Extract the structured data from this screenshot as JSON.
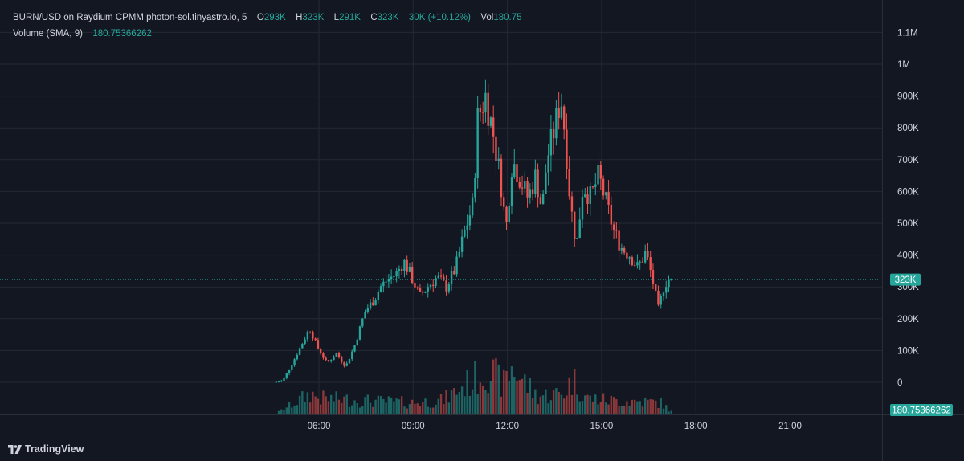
{
  "header": {
    "symbol": "BURN/USD on Raydium CPMM photon-sol.tinyastro.io",
    "interval": "5",
    "open_label": "O",
    "open_value": "293K",
    "high_label": "H",
    "high_value": "323K",
    "low_label": "L",
    "low_value": "291K",
    "close_label": "C",
    "close_value": "323K",
    "change": "30K (+10.12%)",
    "vol_label": "Vol",
    "vol_value": "180.75"
  },
  "indicator": {
    "label": "Volume (SMA, 9)",
    "value": "180.75366262"
  },
  "brand": {
    "name": "TradingView"
  },
  "colors": {
    "up": "#26a69a",
    "down": "#ef5350",
    "background": "#131722",
    "grid": "#242832"
  },
  "chart_data": {
    "type": "candlestick",
    "y_axis": {
      "ticks": [
        "1.1M",
        "1M",
        "900K",
        "800K",
        "700K",
        "600K",
        "500K",
        "400K",
        "300K",
        "200K",
        "100K",
        "0"
      ],
      "tick_values": [
        1100000,
        1000000,
        900000,
        800000,
        700000,
        600000,
        500000,
        400000,
        300000,
        200000,
        100000,
        0
      ],
      "ylim": [
        0,
        1100000
      ]
    },
    "x_axis": {
      "ticks": [
        "06:00",
        "09:00",
        "12:00",
        "15:00",
        "18:00",
        "21:00"
      ],
      "tick_hours": [
        6,
        9,
        12,
        15,
        18,
        21
      ]
    },
    "last_price": {
      "label": "323K",
      "value": 323000
    },
    "volume_last_label": "180.75366262",
    "price_path": [
      [
        4.6,
        0
      ],
      [
        4.9,
        5000
      ],
      [
        5.2,
        60000
      ],
      [
        5.5,
        120000
      ],
      [
        5.75,
        170000
      ],
      [
        6.0,
        110000
      ],
      [
        6.3,
        60000
      ],
      [
        6.6,
        90000
      ],
      [
        6.9,
        50000
      ],
      [
        7.2,
        120000
      ],
      [
        7.5,
        220000
      ],
      [
        7.8,
        260000
      ],
      [
        8.0,
        300000
      ],
      [
        8.2,
        320000
      ],
      [
        8.5,
        340000
      ],
      [
        8.75,
        380000
      ],
      [
        9.0,
        330000
      ],
      [
        9.25,
        270000
      ],
      [
        9.5,
        300000
      ],
      [
        9.8,
        330000
      ],
      [
        10.1,
        300000
      ],
      [
        10.4,
        360000
      ],
      [
        10.7,
        480000
      ],
      [
        10.95,
        560000
      ],
      [
        11.1,
        830000
      ],
      [
        11.35,
        900000
      ],
      [
        11.6,
        780000
      ],
      [
        11.85,
        620000
      ],
      [
        12.0,
        480000
      ],
      [
        12.2,
        700000
      ],
      [
        12.45,
        640000
      ],
      [
        12.7,
        580000
      ],
      [
        12.95,
        650000
      ],
      [
        13.15,
        540000
      ],
      [
        13.3,
        700000
      ],
      [
        13.55,
        800000
      ],
      [
        13.75,
        900000
      ],
      [
        13.9,
        760000
      ],
      [
        14.05,
        560000
      ],
      [
        14.25,
        430000
      ],
      [
        14.45,
        620000
      ],
      [
        14.7,
        580000
      ],
      [
        14.95,
        650000
      ],
      [
        15.2,
        560000
      ],
      [
        15.45,
        470000
      ],
      [
        15.7,
        420000
      ],
      [
        15.95,
        400000
      ],
      [
        16.2,
        360000
      ],
      [
        16.45,
        410000
      ],
      [
        16.65,
        330000
      ],
      [
        16.85,
        230000
      ],
      [
        17.05,
        310000
      ],
      [
        17.2,
        325000
      ]
    ],
    "volume_bursts": [
      [
        4.6,
        0.02
      ],
      [
        5.7,
        0.45
      ],
      [
        5.95,
        0.35
      ],
      [
        7.3,
        0.3
      ],
      [
        8.9,
        0.25
      ],
      [
        9.9,
        0.3
      ],
      [
        11.1,
        0.85
      ],
      [
        11.35,
        0.95
      ],
      [
        11.85,
        0.65
      ],
      [
        12.1,
        1.0
      ],
      [
        12.9,
        0.4
      ],
      [
        13.75,
        0.45
      ],
      [
        14.05,
        0.75
      ],
      [
        14.5,
        0.35
      ],
      [
        15.3,
        0.3
      ],
      [
        16.2,
        0.28
      ],
      [
        16.85,
        0.25
      ],
      [
        17.2,
        0.05
      ]
    ]
  }
}
